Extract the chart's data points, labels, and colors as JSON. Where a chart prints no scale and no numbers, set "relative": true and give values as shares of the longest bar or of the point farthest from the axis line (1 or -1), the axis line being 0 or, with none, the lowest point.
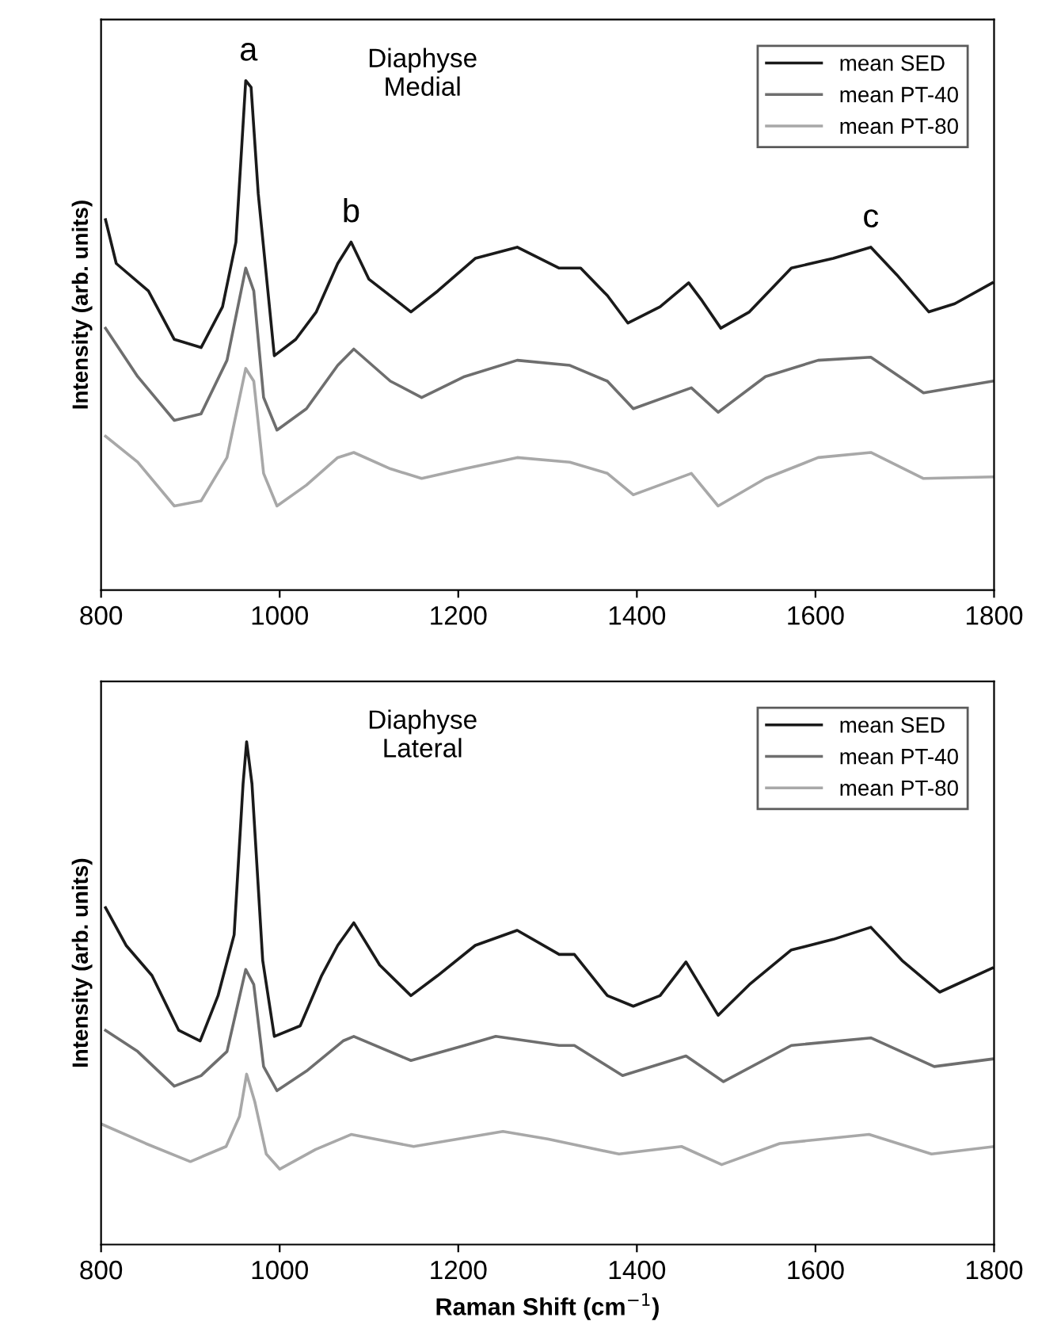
{
  "chart_data": [
    {
      "type": "line",
      "title": "Diaphyse\nMedial",
      "ylabel": "Intensity (arb. units)",
      "relative": true,
      "xlim": [
        800,
        1800
      ],
      "xticks": [
        800,
        1000,
        1200,
        1400,
        1600,
        1800
      ],
      "grid": false,
      "legend": "top right",
      "marker": "none",
      "line_style": "solid",
      "annotations": [
        {
          "text": "a",
          "x": 965,
          "y": 1.0
        },
        {
          "text": "b",
          "x": 1080,
          "y": 0.683
        },
        {
          "text": "c",
          "x": 1662,
          "y": 0.673
        }
      ],
      "series": [
        {
          "name": "mean SED",
          "color": "#1a1a1a",
          "x": [
            805,
            817,
            853,
            882,
            912,
            936,
            951,
            962,
            968,
            976,
            994,
            1018,
            1041,
            1065,
            1080,
            1100,
            1147,
            1177,
            1219,
            1266,
            1313,
            1337,
            1367,
            1390,
            1426,
            1458,
            1473,
            1494,
            1526,
            1573,
            1620,
            1662,
            1691,
            1727,
            1756,
            1798
          ],
          "values": [
            0.727,
            0.641,
            0.587,
            0.492,
            0.476,
            0.556,
            0.683,
            1.0,
            0.987,
            0.778,
            0.46,
            0.492,
            0.546,
            0.641,
            0.683,
            0.61,
            0.546,
            0.587,
            0.651,
            0.673,
            0.632,
            0.632,
            0.578,
            0.524,
            0.556,
            0.603,
            0.568,
            0.514,
            0.546,
            0.632,
            0.651,
            0.673,
            0.619,
            0.546,
            0.562,
            0.603
          ]
        },
        {
          "name": "mean PT-40",
          "color": "#6e6e6e",
          "x": [
            805,
            841,
            882,
            912,
            941,
            962,
            971,
            982,
            997,
            1030,
            1065,
            1083,
            1124,
            1159,
            1207,
            1266,
            1325,
            1367,
            1396,
            1461,
            1491,
            1544,
            1603,
            1662,
            1721,
            1798
          ],
          "values": [
            0.514,
            0.419,
            0.333,
            0.346,
            0.451,
            0.632,
            0.587,
            0.378,
            0.314,
            0.356,
            0.441,
            0.473,
            0.41,
            0.378,
            0.419,
            0.451,
            0.441,
            0.41,
            0.356,
            0.397,
            0.349,
            0.419,
            0.451,
            0.457,
            0.387,
            0.41
          ]
        },
        {
          "name": "mean PT-80",
          "color": "#a8a8a8",
          "x": [
            805,
            841,
            882,
            912,
            941,
            962,
            971,
            982,
            997,
            1030,
            1065,
            1083,
            1124,
            1159,
            1207,
            1266,
            1325,
            1367,
            1396,
            1461,
            1491,
            1544,
            1603,
            1662,
            1721,
            1798
          ],
          "values": [
            0.302,
            0.251,
            0.165,
            0.175,
            0.26,
            0.435,
            0.41,
            0.229,
            0.165,
            0.206,
            0.26,
            0.27,
            0.238,
            0.219,
            0.238,
            0.26,
            0.251,
            0.229,
            0.187,
            0.229,
            0.165,
            0.219,
            0.26,
            0.27,
            0.219,
            0.222
          ]
        }
      ]
    },
    {
      "type": "line",
      "title": "Diaphyse\nLateral",
      "xlabel": "Raman Shift (cm$^{−1}$)",
      "ylabel": "Intensity (arb. units)",
      "relative": true,
      "xlim": [
        800,
        1800
      ],
      "xticks": [
        800,
        1000,
        1200,
        1400,
        1600,
        1800
      ],
      "grid": false,
      "legend": "top right",
      "marker": "none",
      "line_style": "solid",
      "series": [
        {
          "name": "mean SED",
          "color": "#1a1a1a",
          "x": [
            805,
            828,
            857,
            887,
            911,
            931,
            949,
            959,
            963,
            969,
            981,
            994,
            1023,
            1047,
            1065,
            1083,
            1112,
            1147,
            1177,
            1219,
            1266,
            1313,
            1330,
            1367,
            1396,
            1426,
            1455,
            1491,
            1526,
            1573,
            1620,
            1662,
            1697,
            1739,
            1798
          ],
          "values": [
            0.67,
            0.595,
            0.535,
            0.426,
            0.405,
            0.495,
            0.616,
            0.916,
            1.0,
            0.916,
            0.565,
            0.414,
            0.435,
            0.535,
            0.595,
            0.64,
            0.556,
            0.495,
            0.535,
            0.595,
            0.625,
            0.577,
            0.577,
            0.495,
            0.474,
            0.495,
            0.562,
            0.456,
            0.517,
            0.586,
            0.607,
            0.631,
            0.565,
            0.502,
            0.55
          ]
        },
        {
          "name": "mean PT-40",
          "color": "#6e6e6e",
          "x": [
            805,
            841,
            882,
            912,
            941,
            962,
            971,
            982,
            997,
            1030,
            1071,
            1083,
            1147,
            1207,
            1242,
            1313,
            1330,
            1384,
            1455,
            1497,
            1573,
            1662,
            1733,
            1798
          ],
          "values": [
            0.426,
            0.384,
            0.315,
            0.336,
            0.384,
            0.547,
            0.517,
            0.354,
            0.306,
            0.345,
            0.405,
            0.414,
            0.366,
            0.396,
            0.414,
            0.396,
            0.396,
            0.336,
            0.375,
            0.324,
            0.396,
            0.411,
            0.354,
            0.369
          ]
        },
        {
          "name": "mean PT-80",
          "color": "#a8a8a8",
          "x": [
            800,
            850,
            900,
            940,
            955,
            963,
            972,
            985,
            1000,
            1040,
            1080,
            1150,
            1250,
            1300,
            1380,
            1450,
            1495,
            1560,
            1660,
            1730,
            1800
          ],
          "values": [
            0.24,
            0.201,
            0.165,
            0.195,
            0.255,
            0.339,
            0.285,
            0.18,
            0.15,
            0.189,
            0.219,
            0.195,
            0.225,
            0.21,
            0.18,
            0.195,
            0.159,
            0.201,
            0.219,
            0.18,
            0.195
          ]
        }
      ]
    }
  ]
}
